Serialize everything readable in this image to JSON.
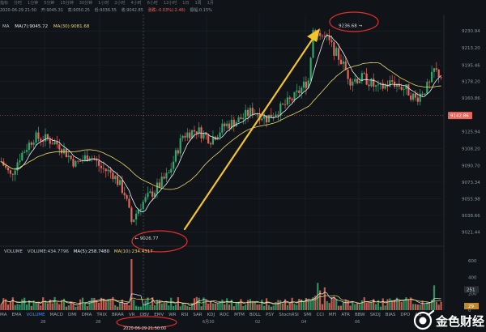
{
  "top_bar": {
    "items": [
      "指标",
      "分时",
      "1分钟",
      "5分钟",
      "15分钟",
      "30分钟",
      "1小时",
      "2小时",
      "4小时",
      "6小时",
      "12小时",
      "1日",
      "1周",
      "1月"
    ]
  },
  "info_line": {
    "datetime": "2020-06-29 21:50",
    "open": "开:9045.31",
    "high": "高:9050.25",
    "low": "低:9036.55",
    "close": "收:9042.85",
    "change": "涨跌:-0.03%(-2.46)",
    "amplitude": "振幅:0.15%"
  },
  "ma_legend": {
    "label": "MA",
    "ma7": "MA(7):9045.72",
    "ma30": "MA(30):9081.68"
  },
  "price_axis": {
    "ticks": [
      "9230.94",
      "9213.20",
      "9195.46",
      "9178.20",
      "9160.86",
      "9125.94",
      "9108.20",
      "9090.70",
      "9073.34",
      "9055.98",
      "9038.66",
      "9021.44"
    ],
    "current_price": "9142.86"
  },
  "annotations": {
    "high_label": "9236.68",
    "low_label": "9026.77"
  },
  "volume_legend": {
    "label": "VOLUME",
    "volume": "VOLUME:434.7796",
    "ma5": "MA(5):258.7480",
    "ma10": "MA(10):234.4317"
  },
  "volume_axis": {
    "ticks": [
      "600",
      "400",
      "200",
      "0"
    ],
    "current": "251",
    "badge": "29"
  },
  "indicators": {
    "items": [
      "MA",
      "EMA",
      "VOLUME",
      "MACD",
      "DMI",
      "DMA",
      "TRIX",
      "BRAR",
      "VR",
      "OBV",
      "EMV",
      "WR",
      "RSI",
      "SAR",
      "KDJ",
      "ROC",
      "MTM",
      "BOLL",
      "PSY",
      "StochRSI",
      "SMI",
      "CCI",
      "MFI",
      "ATR",
      "BBW",
      "SKDJ",
      "BIAS",
      "DPO",
      "AD",
      "Position",
      "FundFlow",
      "AI-Nerve"
    ],
    "active": "VOLUME"
  },
  "date_axis": {
    "labels": [
      "28",
      "28",
      "6月30",
      "02",
      "04",
      "06"
    ],
    "crosshair": "2020-06-29 21:50:00"
  },
  "logo": {
    "text": "金色财经"
  },
  "colors": {
    "background": "#101419",
    "up": "#2fa96d",
    "down": "#e8675c",
    "ma7": "#e8eef4",
    "ma30": "#e8d76a",
    "arrow": "#f3c42b",
    "ellipse": "#e0302b",
    "price_badge": "#e8675c"
  },
  "chart_data": {
    "type": "candlestick",
    "y_range": [
      9010,
      9248
    ],
    "price_ticks": [
      9230.94,
      9213.2,
      9195.46,
      9178.2,
      9160.86,
      9125.94,
      9108.2,
      9090.7,
      9073.34,
      9055.98,
      9038.66,
      9021.44
    ],
    "current_price": 9142.86,
    "high": 9236.68,
    "low": 9026.77,
    "volume_range": [
      0,
      700
    ],
    "volume_ticks": [
      0,
      200,
      400,
      600
    ],
    "ma_legend_values": {
      "ma7": 9045.72,
      "ma30": 9081.68
    },
    "volume_legend_values": {
      "volume": 434.7796,
      "ma5": 258.748,
      "ma10": 234.4317
    },
    "close_anchors": [
      [
        0,
        9095
      ],
      [
        4,
        9080
      ],
      [
        8,
        9100
      ],
      [
        14,
        9120
      ],
      [
        20,
        9118
      ],
      [
        25,
        9112
      ],
      [
        32,
        9092
      ],
      [
        38,
        9102
      ],
      [
        43,
        9088
      ],
      [
        48,
        9082
      ],
      [
        53,
        9062
      ],
      [
        56,
        9032
      ],
      [
        60,
        9050
      ],
      [
        66,
        9065
      ],
      [
        72,
        9082
      ],
      [
        78,
        9122
      ],
      [
        84,
        9128
      ],
      [
        90,
        9118
      ],
      [
        96,
        9132
      ],
      [
        102,
        9138
      ],
      [
        108,
        9148
      ],
      [
        114,
        9140
      ],
      [
        120,
        9150
      ],
      [
        126,
        9162
      ],
      [
        132,
        9180
      ],
      [
        134,
        9232
      ],
      [
        140,
        9222
      ],
      [
        146,
        9200
      ],
      [
        150,
        9180
      ],
      [
        156,
        9182
      ],
      [
        162,
        9170
      ],
      [
        168,
        9178
      ],
      [
        174,
        9170
      ],
      [
        178,
        9160
      ],
      [
        184,
        9175
      ],
      [
        186,
        9190
      ],
      [
        189,
        9184
      ]
    ],
    "candle_count": 190
  }
}
